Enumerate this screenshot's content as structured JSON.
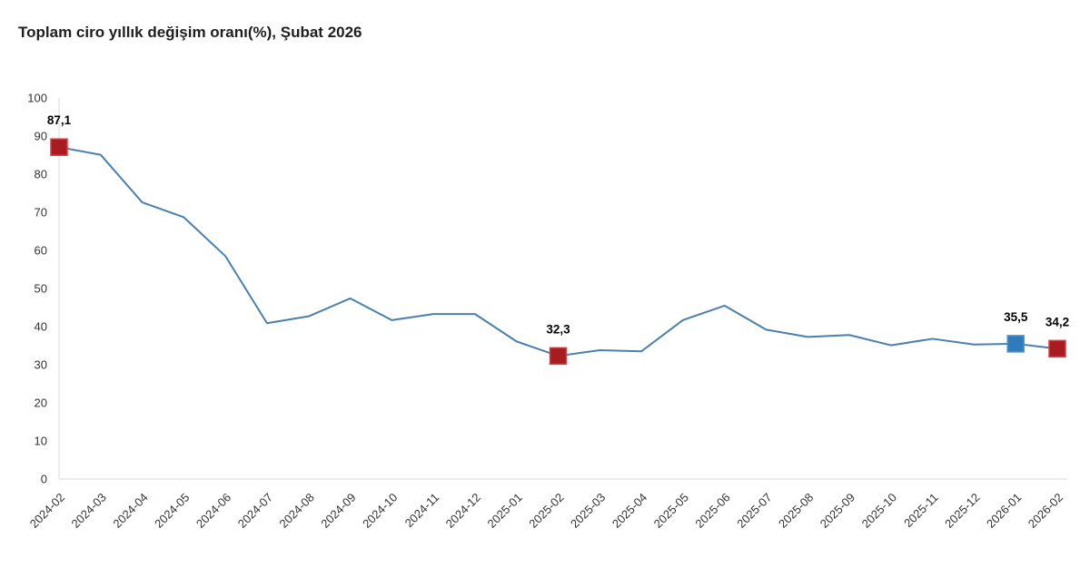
{
  "title": "Toplam ciro yıllık değişim oranı(%), Şubat 2026",
  "colors": {
    "background": "#ffffff",
    "title_text": "#1f1f1f",
    "axis_line": "#d9d9d9",
    "tick_label": "#333333",
    "series_line": "#4980ae",
    "data_label_text": "#000000",
    "highlight_red_fill": "#a81c21",
    "highlight_red_border": "#e03a3e",
    "highlight_blue_fill": "#2e7cb9",
    "highlight_blue_border": "#4a94d0"
  },
  "chart_data": {
    "type": "line",
    "title": "Toplam ciro yıllık değişim oranı(%), Şubat 2026",
    "x": [
      "2024-02",
      "2024-03",
      "2024-04",
      "2024-05",
      "2024-06",
      "2024-07",
      "2024-08",
      "2024-09",
      "2024-10",
      "2024-11",
      "2024-12",
      "2025-01",
      "2025-02",
      "2025-03",
      "2025-04",
      "2025-05",
      "2025-06",
      "2025-07",
      "2025-08",
      "2025-09",
      "2025-10",
      "2025-11",
      "2025-12",
      "2026-01",
      "2026-02"
    ],
    "series": [
      {
        "name": "Toplam ciro yıllık değişim oranı (%)",
        "values": [
          87.1,
          85.1,
          72.6,
          68.7,
          58.5,
          40.9,
          42.7,
          47.4,
          41.7,
          43.3,
          43.3,
          36.1,
          32.3,
          33.8,
          33.5,
          41.7,
          45.5,
          39.2,
          37.3,
          37.8,
          35.1,
          36.8,
          35.3,
          35.5,
          34.2
        ]
      }
    ],
    "ylim": [
      0,
      100
    ],
    "yticks": [
      0,
      10,
      20,
      30,
      40,
      50,
      60,
      70,
      80,
      90,
      100
    ],
    "x_tick_rotation": -45,
    "grid": false,
    "legend": "none",
    "highlighted_points": [
      {
        "x": "2024-02",
        "value": 87.1,
        "label": "87,1",
        "color_role": "red"
      },
      {
        "x": "2025-02",
        "value": 32.3,
        "label": "32,3",
        "color_role": "red"
      },
      {
        "x": "2026-01",
        "value": 35.5,
        "label": "35,5",
        "color_role": "blue"
      },
      {
        "x": "2026-02",
        "value": 34.2,
        "label": "34,2",
        "color_role": "red"
      }
    ]
  }
}
